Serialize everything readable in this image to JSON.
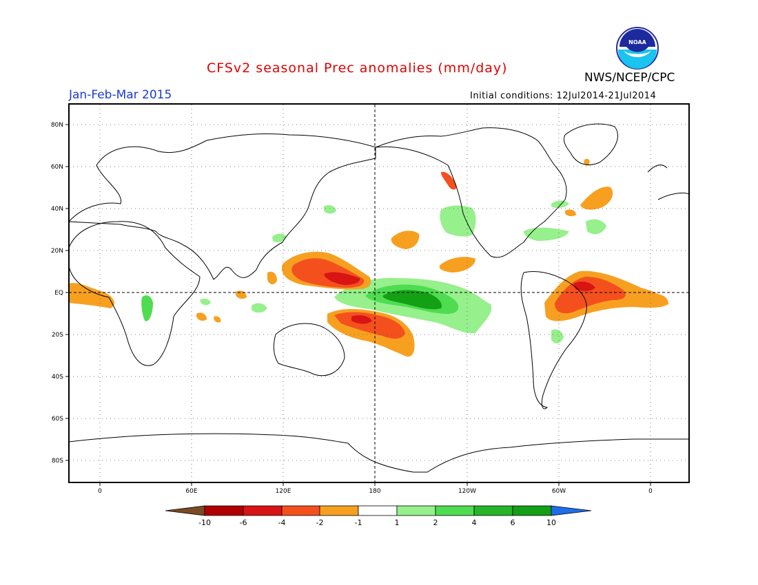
{
  "title": "CFSv2 seasonal Prec anomalies (mm/day)",
  "period": "Jan-Feb-Mar 2015",
  "agency": "NWS/NCEP/CPC",
  "initial_conditions": "Initial conditions: 12Jul2014-21Jul2014",
  "logo_text": "NOAA",
  "lat_labels": [
    "80N",
    "60N",
    "40N",
    "20N",
    "EQ",
    "20S",
    "40S",
    "60S",
    "80S"
  ],
  "lon_labels": [
    "0",
    "60E",
    "120E",
    "180",
    "120W",
    "60W",
    "0"
  ],
  "colorbar": {
    "labels": [
      "-10",
      "-6",
      "-4",
      "-2",
      "-1",
      "1",
      "2",
      "4",
      "6",
      "10"
    ],
    "colors": [
      "#7a4a22",
      "#b00000",
      "#d81414",
      "#f4501e",
      "#f7a020",
      "#ffffff",
      "#96f08c",
      "#50dc50",
      "#28b428",
      "#14a014",
      "#1e6eeb"
    ]
  },
  "colors": {
    "title": "#e00000",
    "period": "#1a3ad8",
    "wet_light": "#96f08c",
    "wet_mid": "#50dc50",
    "wet_dark": "#14a014",
    "dry_light": "#f7a020",
    "dry_mid": "#f4501e",
    "dry_dark": "#d81414"
  }
}
